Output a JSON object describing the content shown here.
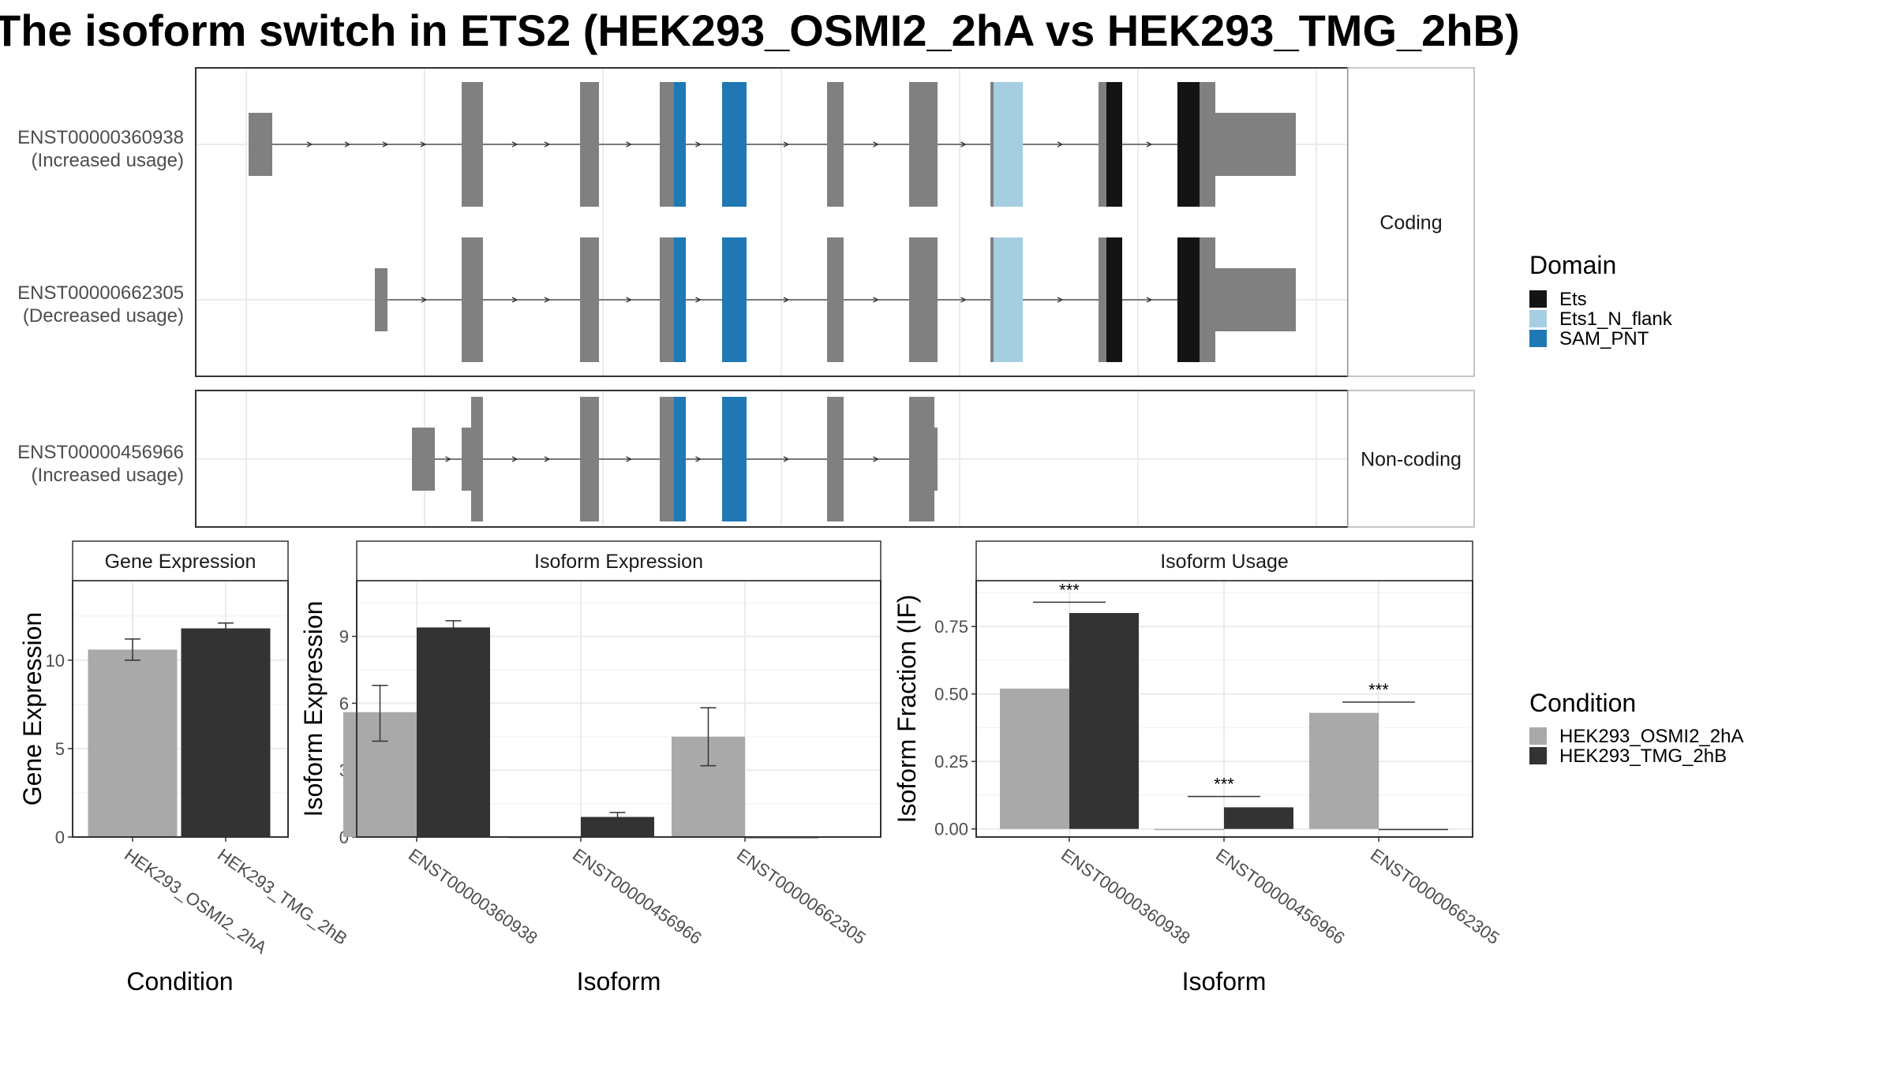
{
  "title": "The isoform switch in ETS2 (HEK293_OSMI2_2hA vs HEK293_TMG_2hB)",
  "colors": {
    "exon": "#808080",
    "Ets": "#141414",
    "Ets1_N_flank": "#a6cee3",
    "SAM_PNT": "#1f78b4",
    "HEK293_OSMI2_2hA": "#a9a9a9",
    "HEK293_TMG_2hB": "#333333"
  },
  "structure": {
    "facets": [
      {
        "label": "Coding",
        "transcripts": [
          {
            "id": "ENST00000360938",
            "usage": "(Increased usage)"
          },
          {
            "id": "ENST00000662305",
            "usage": "(Decreased usage)"
          }
        ]
      },
      {
        "label": "Non-coding",
        "transcripts": [
          {
            "id": "ENST00000456966",
            "usage": "(Increased usage)"
          }
        ]
      }
    ]
  },
  "legend_domain": {
    "title": "Domain",
    "items": [
      {
        "label": "Ets",
        "color": "#141414"
      },
      {
        "label": "Ets1_N_flank",
        "color": "#a6cee3"
      },
      {
        "label": "SAM_PNT",
        "color": "#1f78b4"
      }
    ]
  },
  "legend_condition": {
    "title": "Condition",
    "items": [
      {
        "label": "HEK293_OSMI2_2hA",
        "color": "#a9a9a9"
      },
      {
        "label": "HEK293_TMG_2hB",
        "color": "#333333"
      }
    ]
  },
  "chart_data": [
    {
      "type": "bar",
      "panel": "Gene Expression",
      "xlabel": "Condition",
      "ylabel": "Gene Expression",
      "ylim": [
        0,
        14.5
      ],
      "yticks": [
        0,
        5,
        10
      ],
      "categories": [
        "HEK293_OSMI2_2hA",
        "HEK293_TMG_2hB"
      ],
      "series": [
        {
          "name": "HEK293_OSMI2_2hA",
          "values": [
            10.6,
            null
          ],
          "err_low": [
            10.0,
            null
          ],
          "err_high": [
            11.2,
            null
          ]
        },
        {
          "name": "HEK293_TMG_2hB",
          "values": [
            null,
            11.8
          ],
          "err_low": [
            null,
            11.5
          ],
          "err_high": [
            null,
            12.1
          ]
        }
      ],
      "grid": true
    },
    {
      "type": "bar",
      "panel": "Isoform Expression",
      "xlabel": "Isoform",
      "ylabel": "Isoform Expression",
      "ylim": [
        0,
        11.5
      ],
      "yticks": [
        0,
        3,
        6,
        9
      ],
      "categories": [
        "ENST00000360938",
        "ENST00000456966",
        "ENST00000662305"
      ],
      "series": [
        {
          "name": "HEK293_OSMI2_2hA",
          "values": [
            5.6,
            0,
            4.5
          ],
          "err_low": [
            4.3,
            0,
            3.2
          ],
          "err_high": [
            6.8,
            0,
            5.8
          ]
        },
        {
          "name": "HEK293_TMG_2hB",
          "values": [
            9.4,
            0.9,
            0
          ],
          "err_low": [
            9.2,
            0.7,
            0
          ],
          "err_high": [
            9.7,
            1.1,
            0
          ]
        }
      ],
      "grid": true
    },
    {
      "type": "bar",
      "panel": "Isoform Usage",
      "xlabel": "Isoform",
      "ylabel": "Isoform Fraction (IF)",
      "ylim": [
        -0.03,
        0.92
      ],
      "yticks": [
        0.0,
        0.25,
        0.5,
        0.75
      ],
      "yticklabels": [
        "0.00",
        "0.25",
        "0.50",
        "0.75"
      ],
      "categories": [
        "ENST00000360938",
        "ENST00000456966",
        "ENST00000662305"
      ],
      "series": [
        {
          "name": "HEK293_OSMI2_2hA",
          "values": [
            0.52,
            0.0,
            0.43
          ]
        },
        {
          "name": "HEK293_TMG_2hB",
          "values": [
            0.8,
            0.08,
            0.0
          ]
        }
      ],
      "annotations": [
        {
          "category": "ENST00000360938",
          "text": "***",
          "y": 0.84
        },
        {
          "category": "ENST00000456966",
          "text": "***",
          "y": 0.12
        },
        {
          "category": "ENST00000662305",
          "text": "***",
          "y": 0.47
        }
      ],
      "grid": true
    }
  ]
}
